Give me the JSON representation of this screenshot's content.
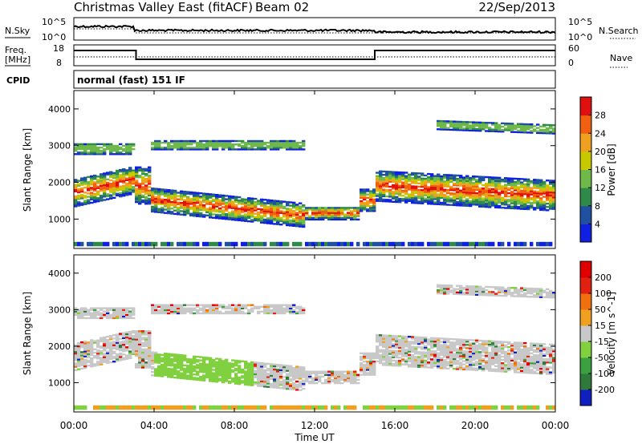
{
  "header": {
    "title": "Christmas Valley East (fitACF)",
    "beam": "Beam 02",
    "date": "22/Sep/2013"
  },
  "noise_panel": {
    "left_label": "N.Sky",
    "right_label": "N.Search",
    "left_ticks": [
      "10^5",
      "10^0"
    ],
    "right_ticks": [
      "10^5",
      "10^0"
    ]
  },
  "freq_panel": {
    "left_label_line1": "Freq.",
    "left_label_line2": "[MHz]",
    "right_label": "Nave",
    "left_ticks": [
      "18",
      "8"
    ],
    "right_ticks": [
      "60",
      "0"
    ]
  },
  "cpid": {
    "label": "CPID",
    "value": "normal (fast) 151 IF"
  },
  "chart_data": [
    {
      "type": "heatmap",
      "name": "Power",
      "ylabel": "Slant Range [km]",
      "xlabel": "Time UT",
      "xticks": [
        "00:00",
        "04:00",
        "08:00",
        "12:00",
        "16:00",
        "20:00",
        "00:00"
      ],
      "yticks": [
        "1000",
        "2000",
        "3000",
        "4000"
      ],
      "xlim_hours": [
        0,
        24
      ],
      "ylim_km": [
        200,
        4500
      ],
      "colorbar": {
        "label": "Power [dB]",
        "ticks": [
          "4",
          "8",
          "12",
          "16",
          "20",
          "24",
          "28"
        ],
        "range": [
          0,
          30
        ],
        "colors": [
          "#1020e0",
          "#2050a0",
          "#2f8a4a",
          "#6fb84a",
          "#c8c800",
          "#f0a020",
          "#f06010",
          "#e01010"
        ]
      }
    },
    {
      "type": "heatmap",
      "name": "Velocity",
      "ylabel": "Slant Range [km]",
      "xlabel": "Time UT",
      "xticks": [
        "00:00",
        "04:00",
        "08:00",
        "12:00",
        "16:00",
        "20:00",
        "00:00"
      ],
      "yticks": [
        "1000",
        "2000",
        "3000",
        "4000"
      ],
      "xlim_hours": [
        0,
        24
      ],
      "ylim_km": [
        200,
        4500
      ],
      "colorbar": {
        "label": "Velocity [m s^-1]",
        "ticks": [
          "200",
          "100",
          "50",
          "15",
          "-15",
          "-50",
          "-100",
          "-200"
        ],
        "range": [
          -250,
          250
        ],
        "colors": [
          "#1020c0",
          "#2f7a3a",
          "#3aa040",
          "#80d040",
          "#c8c8c8",
          "#f0a020",
          "#f07010",
          "#e02010",
          "#e00000"
        ]
      }
    }
  ]
}
